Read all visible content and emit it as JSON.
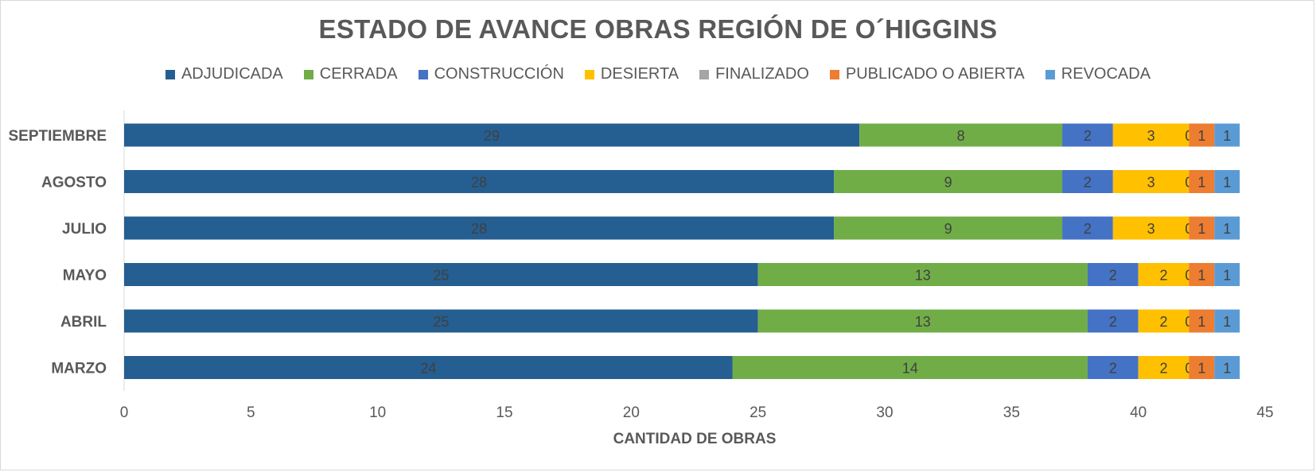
{
  "chart_data": {
    "type": "bar",
    "orientation": "horizontal",
    "stacked": true,
    "title": "ESTADO DE AVANCE OBRAS REGIÓN DE O´HIGGINS",
    "xlabel": "CANTIDAD DE OBRAS",
    "ylabel": "",
    "xlim": [
      0,
      45
    ],
    "x_ticks": [
      0,
      5,
      10,
      15,
      20,
      25,
      30,
      35,
      40,
      45
    ],
    "grid": false,
    "legend_position": "top",
    "categories": [
      "SEPTIEMBRE",
      "AGOSTO",
      "JULIO",
      "MAYO",
      "ABRIL",
      "MARZO"
    ],
    "series": [
      {
        "name": "ADJUDICADA",
        "color": "#255e91",
        "values": [
          29,
          28,
          28,
          25,
          25,
          24
        ]
      },
      {
        "name": "CERRADA",
        "color": "#70ad47",
        "values": [
          8,
          9,
          9,
          13,
          13,
          14
        ]
      },
      {
        "name": "CONSTRUCCIÓN",
        "color": "#4472c4",
        "values": [
          2,
          2,
          2,
          2,
          2,
          2
        ]
      },
      {
        "name": "DESIERTA",
        "color": "#ffc000",
        "values": [
          3,
          3,
          3,
          2,
          2,
          2
        ]
      },
      {
        "name": "FINALIZADO",
        "color": "#a5a5a5",
        "values": [
          0,
          0,
          0,
          0,
          0,
          0
        ]
      },
      {
        "name": "PUBLICADO O ABIERTA",
        "color": "#ed7d31",
        "values": [
          1,
          1,
          1,
          1,
          1,
          1
        ]
      },
      {
        "name": "REVOCADA",
        "color": "#5b9bd5",
        "values": [
          1,
          1,
          1,
          1,
          1,
          1
        ]
      }
    ]
  }
}
